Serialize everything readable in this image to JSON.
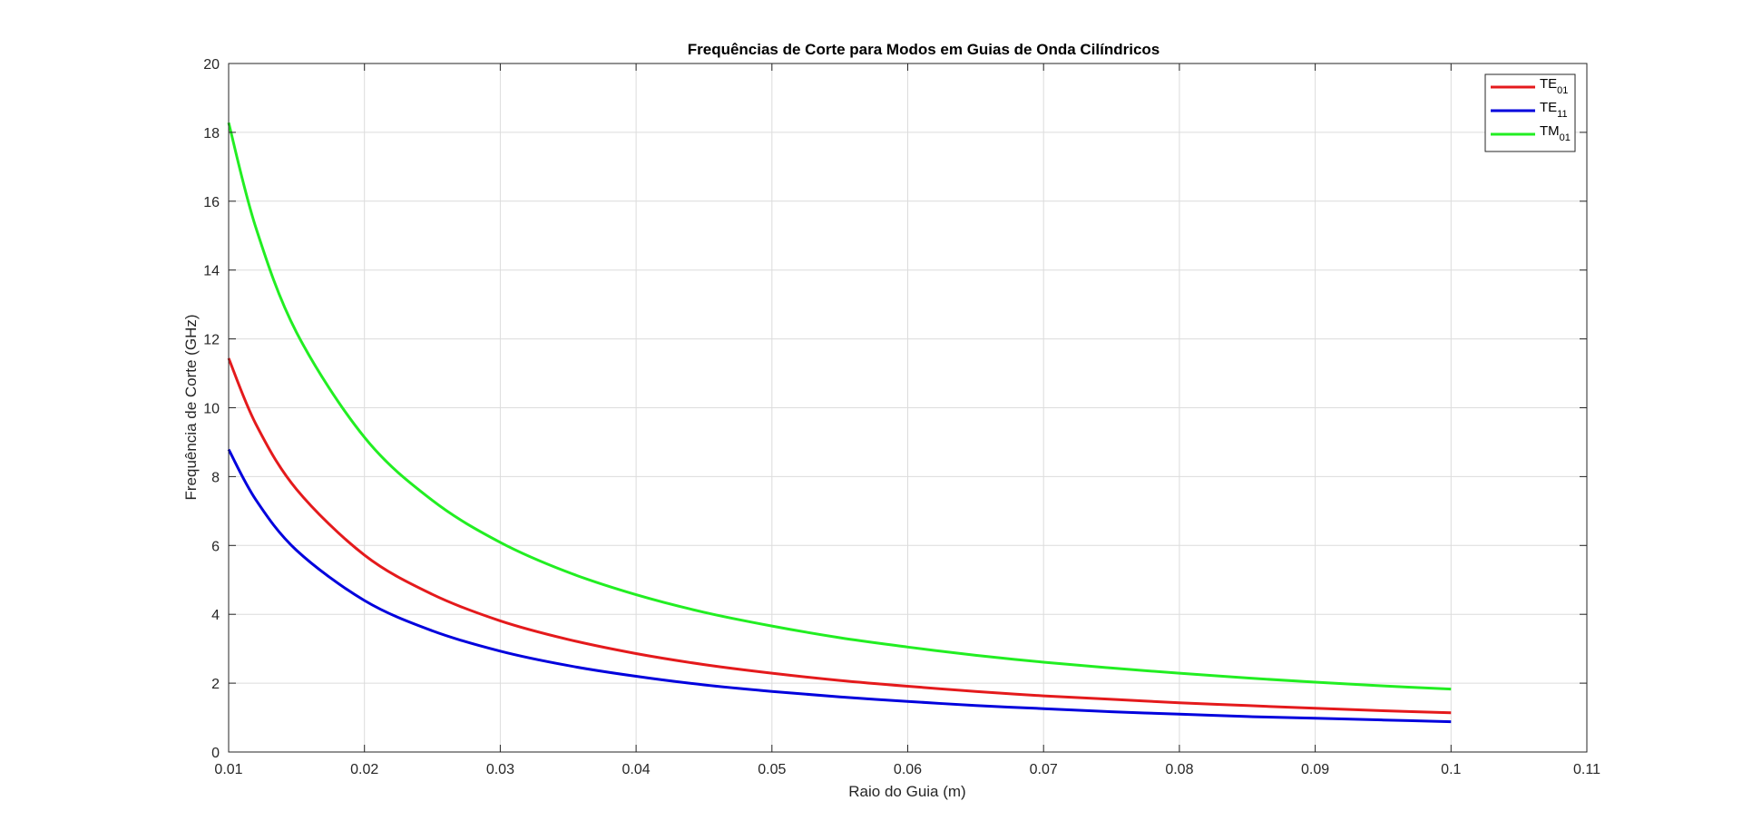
{
  "chart_data": {
    "type": "line",
    "title": "Frequências de Corte para Modos em Guias de Onda Cilíndricos",
    "xlabel": "Raio do Guia (m)",
    "ylabel": "Frequência de Corte (GHz)",
    "xlim": [
      0.01,
      0.11
    ],
    "ylim": [
      0,
      20
    ],
    "xticks": [
      "0.01",
      "0.02",
      "0.03",
      "0.04",
      "0.05",
      "0.06",
      "0.07",
      "0.08",
      "0.09",
      "0.1",
      "0.11"
    ],
    "yticks": [
      "0",
      "2",
      "4",
      "6",
      "8",
      "10",
      "12",
      "14",
      "16",
      "18",
      "20"
    ],
    "grid": true,
    "legend_position": "top-right",
    "x": [
      0.01,
      0.012,
      0.015,
      0.02,
      0.025,
      0.03,
      0.035,
      0.04,
      0.045,
      0.05,
      0.055,
      0.06,
      0.065,
      0.07,
      0.075,
      0.08,
      0.085,
      0.09,
      0.095,
      0.1
    ],
    "series": [
      {
        "name_main": "TE",
        "name_sub": "01",
        "color": "#e41a1c",
        "values": [
          11.44,
          9.53,
          7.63,
          5.72,
          4.58,
          3.81,
          3.27,
          2.86,
          2.54,
          2.29,
          2.08,
          1.91,
          1.76,
          1.63,
          1.53,
          1.43,
          1.35,
          1.27,
          1.2,
          1.14
        ]
      },
      {
        "name_main": "TE",
        "name_sub": "11",
        "color": "#0000dd",
        "values": [
          8.79,
          7.33,
          5.86,
          4.4,
          3.52,
          2.93,
          2.51,
          2.2,
          1.95,
          1.76,
          1.6,
          1.47,
          1.35,
          1.26,
          1.17,
          1.1,
          1.03,
          0.98,
          0.93,
          0.88
        ]
      },
      {
        "name_main": "TM",
        "name_sub": "01",
        "color": "#22ee22",
        "values": [
          18.28,
          15.24,
          12.19,
          9.14,
          7.31,
          6.09,
          5.22,
          4.57,
          4.06,
          3.66,
          3.32,
          3.05,
          2.81,
          2.61,
          2.44,
          2.29,
          2.15,
          2.03,
          1.92,
          1.83
        ]
      }
    ]
  }
}
